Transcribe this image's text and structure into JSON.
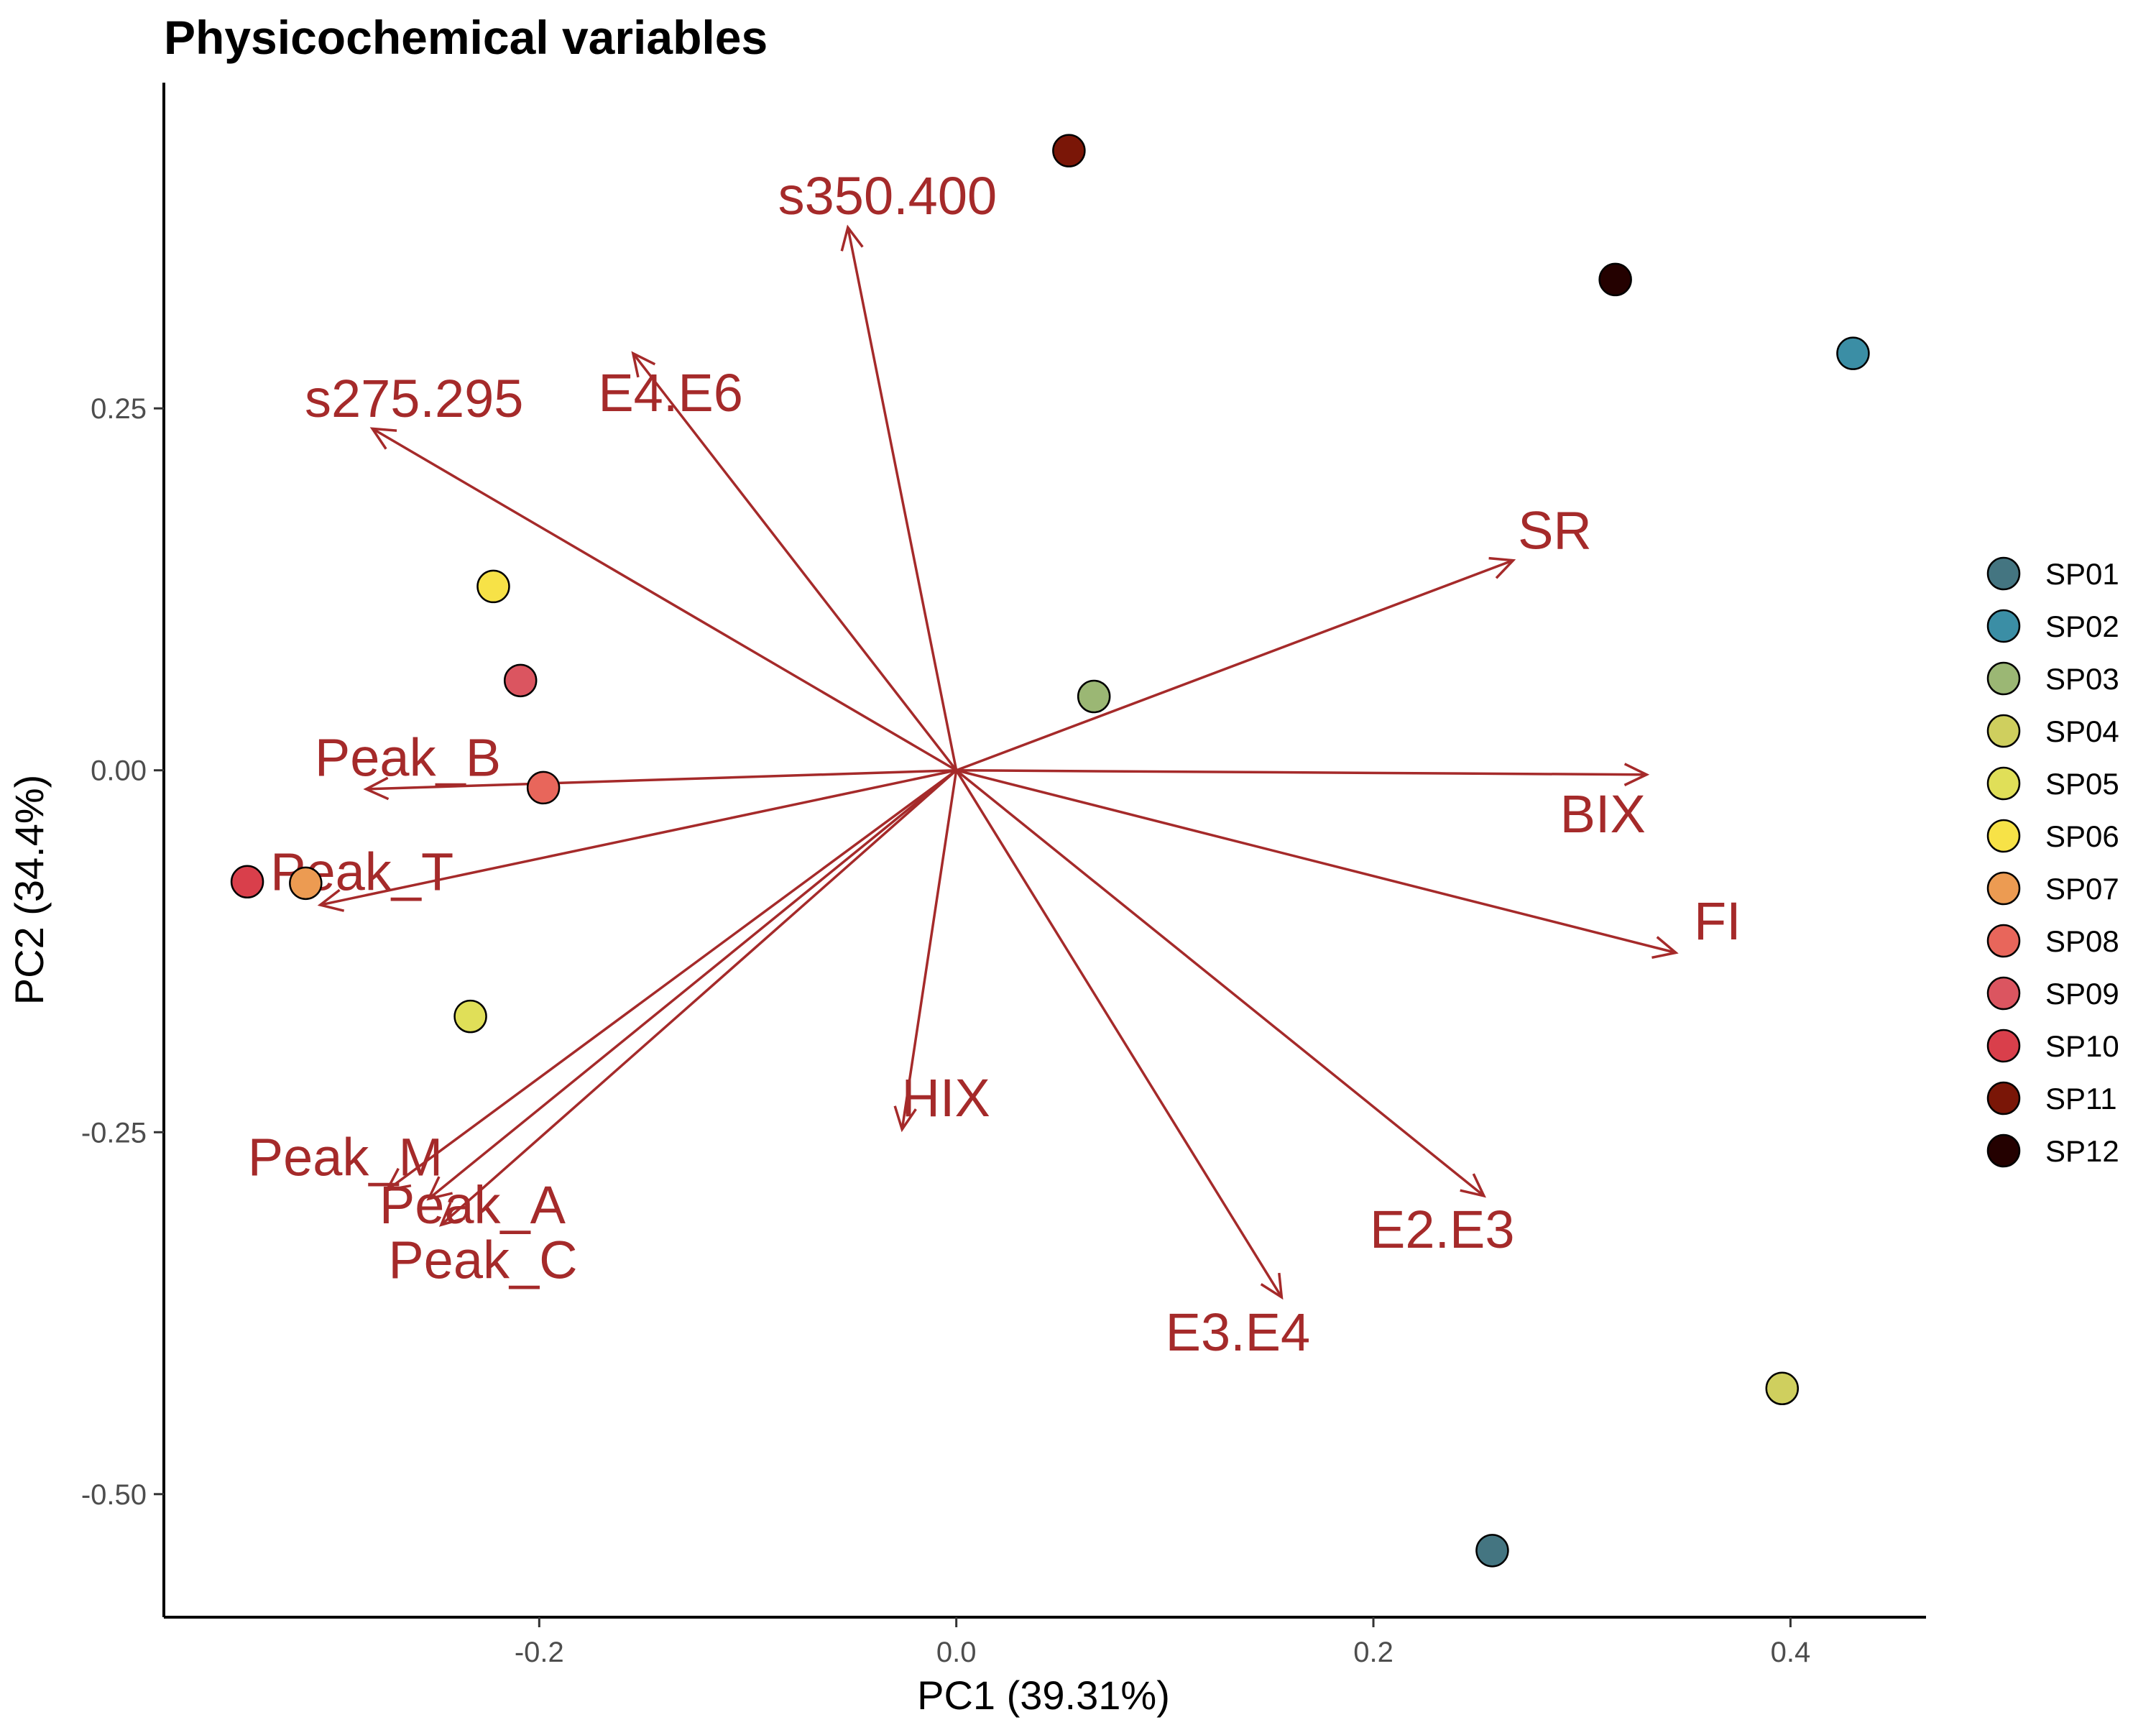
{
  "chart_data": {
    "type": "scatter",
    "title": "Physicochemical variables",
    "xlabel": "PC1 (39.31%)",
    "ylabel": "PC2 (34.4%)",
    "xlim": [
      -0.38,
      0.465
    ],
    "ylim": [
      -0.585,
      0.475
    ],
    "x_ticks": [
      -0.2,
      0.0,
      0.2,
      0.4
    ],
    "x_tick_labels": [
      "-0.2",
      "0.0",
      "0.2",
      "0.4"
    ],
    "y_ticks": [
      -0.5,
      -0.25,
      0.0,
      0.25
    ],
    "y_tick_labels": [
      "-0.50",
      "-0.25",
      "0.00",
      "0.25"
    ],
    "grid": false,
    "legend_position": "right",
    "vector_color": "#a52a2a",
    "points": [
      {
        "name": "SP01",
        "x": 0.257,
        "y": -0.539,
        "color": "#447581"
      },
      {
        "name": "SP02",
        "x": 0.43,
        "y": 0.288,
        "color": "#3b8ea5"
      },
      {
        "name": "SP03",
        "x": 0.066,
        "y": 0.051,
        "color": "#9bb774"
      },
      {
        "name": "SP04",
        "x": 0.396,
        "y": -0.427,
        "color": "#cfcf5e"
      },
      {
        "name": "SP05",
        "x": -0.233,
        "y": -0.17,
        "color": "#e0df58"
      },
      {
        "name": "SP06",
        "x": -0.222,
        "y": 0.127,
        "color": "#f7e247"
      },
      {
        "name": "SP07",
        "x": -0.312,
        "y": -0.078,
        "color": "#ec9b52"
      },
      {
        "name": "SP08",
        "x": -0.198,
        "y": -0.012,
        "color": "#e8665b"
      },
      {
        "name": "SP09",
        "x": -0.209,
        "y": 0.062,
        "color": "#db5560"
      },
      {
        "name": "SP10",
        "x": -0.34,
        "y": -0.077,
        "color": "#d93f4b"
      },
      {
        "name": "SP11",
        "x": 0.054,
        "y": 0.428,
        "color": "#7a1607"
      },
      {
        "name": "SP12",
        "x": 0.316,
        "y": 0.339,
        "color": "#240100"
      }
    ],
    "vectors": [
      {
        "name": "s350.400",
        "x": -0.052,
        "y": 0.375,
        "label_x": -0.033,
        "label_y": 0.397
      },
      {
        "name": "E4.E6",
        "x": -0.155,
        "y": 0.288,
        "label_x": -0.137,
        "label_y": 0.261
      },
      {
        "name": "s275.295",
        "x": -0.28,
        "y": 0.236,
        "label_x": -0.26,
        "label_y": 0.257
      },
      {
        "name": "SR",
        "x": 0.267,
        "y": 0.145,
        "label_x": 0.287,
        "label_y": 0.166
      },
      {
        "name": "BIX",
        "x": 0.331,
        "y": -0.003,
        "label_x": 0.31,
        "label_y": -0.03
      },
      {
        "name": "FI",
        "x": 0.345,
        "y": -0.126,
        "label_x": 0.365,
        "label_y": -0.104
      },
      {
        "name": "Peak_B",
        "x": -0.283,
        "y": -0.013,
        "label_x": -0.263,
        "label_y": 0.009
      },
      {
        "name": "Peak_T",
        "x": -0.305,
        "y": -0.093,
        "label_x": -0.285,
        "label_y": -0.07
      },
      {
        "name": "HIX",
        "x": -0.026,
        "y": -0.248,
        "label_x": -0.005,
        "label_y": -0.226
      },
      {
        "name": "E2.E3",
        "x": 0.253,
        "y": -0.294,
        "label_x": 0.233,
        "label_y": -0.317
      },
      {
        "name": "E3.E4",
        "x": 0.156,
        "y": -0.364,
        "label_x": 0.135,
        "label_y": -0.388
      },
      {
        "name": "Peak_M",
        "x": -0.273,
        "y": -0.29,
        "label_x": -0.293,
        "label_y": -0.267
      },
      {
        "name": "Peak_A",
        "x": -0.253,
        "y": -0.296,
        "label_x": -0.232,
        "label_y": -0.3
      },
      {
        "name": "Peak_C",
        "x": -0.247,
        "y": -0.314,
        "label_x": -0.227,
        "label_y": -0.338
      }
    ]
  }
}
